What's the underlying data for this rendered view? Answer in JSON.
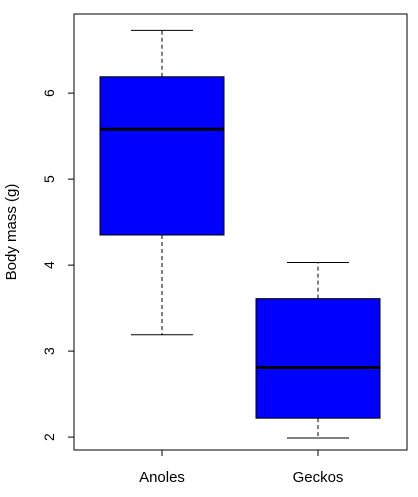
{
  "colors": {
    "box_fill": "#0000ff",
    "line": "#000000",
    "background": "#ffffff"
  },
  "chart_data": {
    "type": "boxplot",
    "title": "",
    "xlabel": "",
    "ylabel": "Body mass (g)",
    "ylim": [
      1.85,
      6.92
    ],
    "yticks": [
      2,
      3,
      4,
      5,
      6
    ],
    "categories": [
      "Anoles",
      "Geckos"
    ],
    "boxes": [
      {
        "category": "Anoles",
        "min": 3.19,
        "q1": 4.35,
        "median": 5.58,
        "q3": 6.19,
        "max": 6.73
      },
      {
        "category": "Geckos",
        "min": 1.99,
        "q1": 2.22,
        "median": 2.81,
        "q3": 3.61,
        "max": 4.03
      }
    ],
    "grid": false,
    "legend": "none"
  }
}
